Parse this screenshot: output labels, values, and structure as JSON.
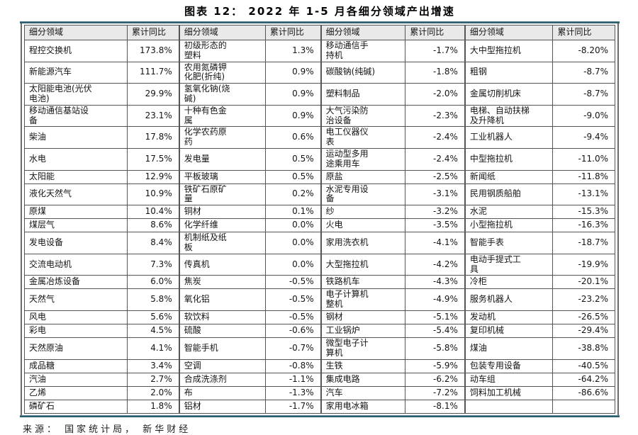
{
  "title": "图表 12：  2022 年 1-5 月各细分领域产出增速",
  "source": "来源： 国家统计局， 新华财经",
  "table": {
    "header": {
      "sector": "细分领域",
      "yoy": "累计同比"
    },
    "rows": [
      [
        {
          "name": "程控交换机",
          "value": "173.8%"
        },
        {
          "name": "初级形态的\n塑料",
          "value": "1.3%"
        },
        {
          "name": "移动通信手\n持机",
          "value": "-1.7%"
        },
        {
          "name": "大中型拖拉机",
          "value": "-8.20%"
        }
      ],
      [
        {
          "name": "新能源汽车",
          "value": "111.7%"
        },
        {
          "name": "农用氮磷钾\n化肥(折纯)",
          "value": "0.9%"
        },
        {
          "name": "碳酸钠(纯碱)",
          "value": "-1.8%"
        },
        {
          "name": "粗钢",
          "value": "-8.7%"
        }
      ],
      [
        {
          "name": "太阳能电池(光伏\n电池)",
          "value": "29.9%"
        },
        {
          "name": "氢氧化钠(烧\n碱)",
          "value": "0.9%"
        },
        {
          "name": "塑料制品",
          "value": "-2.0%"
        },
        {
          "name": "金属切削机床",
          "value": "-8.7%"
        }
      ],
      [
        {
          "name": "移动通信基站设\n备",
          "value": "23.1%"
        },
        {
          "name": "十种有色金\n属",
          "value": "0.9%"
        },
        {
          "name": "大气污染防\n治设备",
          "value": "-2.3%"
        },
        {
          "name": "电梯、自动扶梯\n及升降机",
          "value": "-9.0%"
        }
      ],
      [
        {
          "name": "柴油",
          "value": "17.8%"
        },
        {
          "name": "化学农药原\n药",
          "value": "0.6%"
        },
        {
          "name": "电工仪器仪\n表",
          "value": "-2.4%"
        },
        {
          "name": "工业机器人",
          "value": "-9.4%"
        }
      ],
      [
        {
          "name": "水电",
          "value": "17.5%"
        },
        {
          "name": "发电量",
          "value": "0.5%"
        },
        {
          "name": "运动型多用\n途乘用车",
          "value": "-2.4%"
        },
        {
          "name": "中型拖拉机",
          "value": "-11.0%"
        }
      ],
      [
        {
          "name": "太阳能",
          "value": "12.9%"
        },
        {
          "name": "平板玻璃",
          "value": "0.5%"
        },
        {
          "name": "原盐",
          "value": "-2.5%"
        },
        {
          "name": "新闻纸",
          "value": "-11.8%"
        }
      ],
      [
        {
          "name": "液化天然气",
          "value": "10.9%"
        },
        {
          "name": "铁矿石原矿\n量",
          "value": "0.2%"
        },
        {
          "name": "水泥专用设\n备",
          "value": "-3.1%"
        },
        {
          "name": "民用钢质船舶",
          "value": "-13.1%"
        }
      ],
      [
        {
          "name": "原煤",
          "value": "10.4%"
        },
        {
          "name": "铜材",
          "value": "0.1%"
        },
        {
          "name": "纱",
          "value": "-3.2%"
        },
        {
          "name": "水泥",
          "value": "-15.3%"
        }
      ],
      [
        {
          "name": "煤层气",
          "value": "8.6%"
        },
        {
          "name": "化学纤维",
          "value": "0.0%"
        },
        {
          "name": "火电",
          "value": "-3.5%"
        },
        {
          "name": "小型拖拉机",
          "value": "-16.3%"
        }
      ],
      [
        {
          "name": "发电设备",
          "value": "8.4%"
        },
        {
          "name": "机制纸及纸\n板",
          "value": "0.0%"
        },
        {
          "name": "家用洗衣机",
          "value": "-4.1%"
        },
        {
          "name": "智能手表",
          "value": "-18.7%"
        }
      ],
      [
        {
          "name": "交流电动机",
          "value": "7.3%"
        },
        {
          "name": "传真机",
          "value": "0.0%"
        },
        {
          "name": "大型拖拉机",
          "value": "-4.2%"
        },
        {
          "name": "电动手提式工\n具",
          "value": "-19.9%"
        }
      ],
      [
        {
          "name": "金属冶炼设备",
          "value": "6.0%"
        },
        {
          "name": "焦炭",
          "value": "-0.5%"
        },
        {
          "name": "铁路机车",
          "value": "-4.3%"
        },
        {
          "name": "冷柜",
          "value": "-20.1%"
        }
      ],
      [
        {
          "name": "天然气",
          "value": "5.8%"
        },
        {
          "name": "氧化铝",
          "value": "-0.5%"
        },
        {
          "name": "电子计算机\n整机",
          "value": "-4.9%"
        },
        {
          "name": "服务机器人",
          "value": "-23.2%"
        }
      ],
      [
        {
          "name": "风电",
          "value": "5.6%"
        },
        {
          "name": "软饮料",
          "value": "-0.5%"
        },
        {
          "name": "钢材",
          "value": "-5.1%"
        },
        {
          "name": "发动机",
          "value": "-26.5%"
        }
      ],
      [
        {
          "name": "彩电",
          "value": "4.5%"
        },
        {
          "name": "硫酸",
          "value": "-0.6%"
        },
        {
          "name": "工业锅炉",
          "value": "-5.4%"
        },
        {
          "name": "复印机械",
          "value": "-29.4%"
        }
      ],
      [
        {
          "name": "天然原油",
          "value": "4.1%"
        },
        {
          "name": "智能手机",
          "value": "-0.7%"
        },
        {
          "name": "微型电子计\n算机",
          "value": "-5.8%"
        },
        {
          "name": "煤油",
          "value": "-38.8%"
        }
      ],
      [
        {
          "name": "成品糖",
          "value": "3.4%"
        },
        {
          "name": "空调",
          "value": "-0.8%"
        },
        {
          "name": "生铁",
          "value": "-5.9%"
        },
        {
          "name": "包装专用设备",
          "value": "-40.5%"
        }
      ],
      [
        {
          "name": "汽油",
          "value": "2.7%"
        },
        {
          "name": "合成洗涤剂",
          "value": "-1.1%"
        },
        {
          "name": "集成电路",
          "value": "-6.2%"
        },
        {
          "name": "动车组",
          "value": "-64.2%"
        }
      ],
      [
        {
          "name": "乙烯",
          "value": "2.0%"
        },
        {
          "name": "布",
          "value": "-1.3%"
        },
        {
          "name": "汽车",
          "value": "-7.2%"
        },
        {
          "name": "饲料加工机械",
          "value": "-86.6%"
        }
      ],
      [
        {
          "name": "磷矿石",
          "value": "1.8%"
        },
        {
          "name": "铝材",
          "value": "-1.7%"
        },
        {
          "name": "家用电冰箱",
          "value": "-8.1%"
        },
        {
          "name": "",
          "value": ""
        }
      ]
    ]
  },
  "colors": {
    "rule_teal": "#2c6373",
    "border_gray": "#555555",
    "header_bg": "#e9e9e9"
  }
}
